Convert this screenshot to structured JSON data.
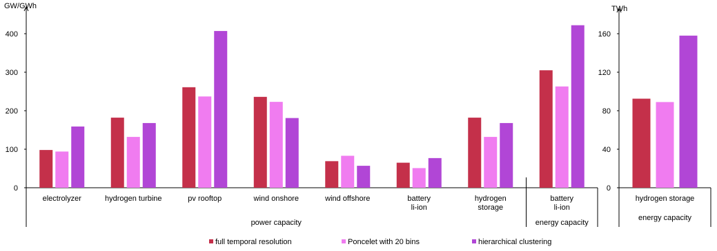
{
  "colors": {
    "series": [
      "#c4304a",
      "#f07cf0",
      "#b146d6"
    ],
    "axis": "#000000",
    "grid": "#d9d9d9"
  },
  "chart_data": [
    {
      "type": "bar",
      "ylabel": "GW/GWh",
      "ylim": [
        0,
        420
      ],
      "yticks": [
        0,
        100,
        200,
        300,
        400
      ],
      "grid": false,
      "legend": "bottom",
      "categories": [
        {
          "lines": [
            "electrolyzer"
          ]
        },
        {
          "lines": [
            "hydrogen turbine"
          ]
        },
        {
          "lines": [
            "pv rooftop"
          ]
        },
        {
          "lines": [
            "wind onshore"
          ]
        },
        {
          "lines": [
            "wind offshore"
          ]
        },
        {
          "lines": [
            "battery",
            "li-ion"
          ]
        },
        {
          "lines": [
            "hydrogen",
            "storage"
          ]
        },
        {
          "lines": [
            "battery",
            "li-ion"
          ]
        }
      ],
      "groups": [
        {
          "label": "power capacity",
          "span": [
            0,
            6
          ]
        },
        {
          "label": "energy capacity",
          "span": [
            7,
            7
          ]
        }
      ],
      "series": [
        {
          "name": "full temporal resolution",
          "values": [
            98,
            182,
            261,
            236,
            69,
            65,
            182,
            305
          ]
        },
        {
          "name": "Poncelet with 20 bins",
          "values": [
            94,
            132,
            237,
            223,
            83,
            51,
            132,
            263
          ]
        },
        {
          "name": "hierarchical clustering",
          "values": [
            159,
            168,
            407,
            181,
            57,
            77,
            168,
            422
          ]
        }
      ]
    },
    {
      "type": "bar",
      "ylabel": "TWh",
      "ylim": [
        0,
        168
      ],
      "yticks": [
        0,
        40,
        80,
        120,
        160
      ],
      "grid": false,
      "categories": [
        {
          "lines": [
            "hydrogen storage"
          ]
        }
      ],
      "groups": [
        {
          "label": "energy capacity",
          "span": [
            0,
            0
          ]
        }
      ],
      "series": [
        {
          "name": "full temporal resolution",
          "values": [
            92.5
          ]
        },
        {
          "name": "Poncelet with 20 bins",
          "values": [
            89
          ]
        },
        {
          "name": "hierarchical clustering",
          "values": [
            158
          ]
        }
      ]
    }
  ]
}
